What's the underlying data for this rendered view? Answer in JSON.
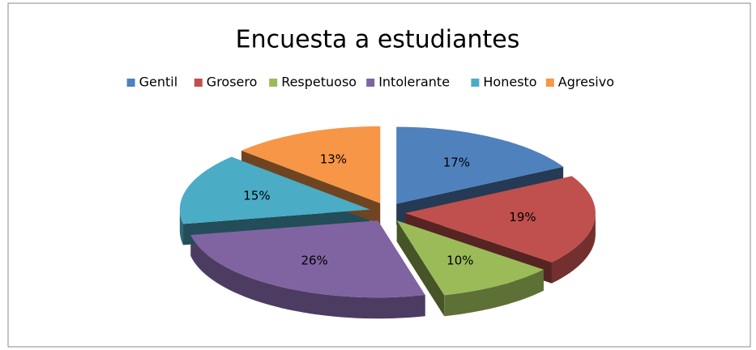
{
  "chart_data": {
    "type": "pie",
    "title": "Encuesta a estudiantes",
    "categories": [
      "Gentil",
      "Grosero",
      "Respetuoso",
      "Intolerante",
      "Honesto",
      "Agresivo"
    ],
    "values": [
      17,
      19,
      10,
      26,
      15,
      13
    ],
    "value_labels": [
      "17%",
      "19%",
      "10%",
      "26%",
      "15%",
      "13%"
    ],
    "colors": [
      "#4f81bd",
      "#c0504d",
      "#9bbb59",
      "#8064a2",
      "#4bacc6",
      "#f79646"
    ],
    "legend": "top"
  }
}
